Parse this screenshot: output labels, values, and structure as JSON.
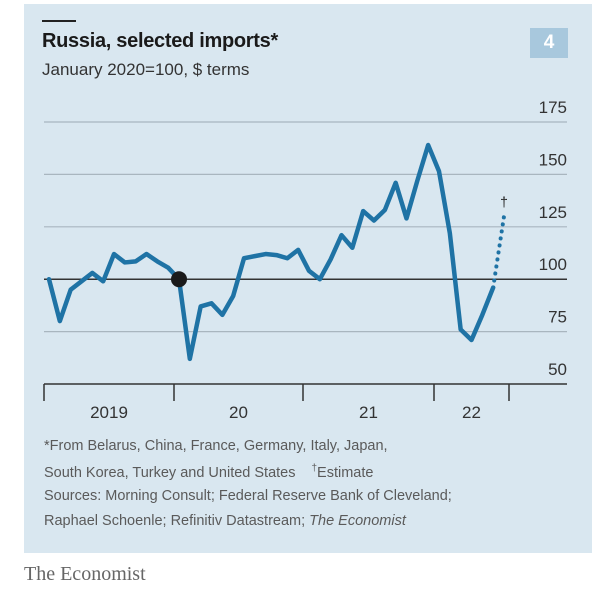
{
  "header": {
    "title": "Russia, selected imports*",
    "subtitle": "January 2020=100, $ terms",
    "badge": "4"
  },
  "footnotes": {
    "line1": "*From Belarus, China, France, Germany, Italy, Japan,",
    "line2": "South Korea, Turkey and United States",
    "dagger": "†",
    "estimate": "Estimate",
    "sources": "Sources: Morning Consult; Federal Reserve Bank of Cleveland;",
    "sources2": "Raphael Schoenle; Refinitiv Datastream; ",
    "sources2_italic": "The Economist"
  },
  "brand": "The Economist",
  "colors": {
    "line": "#1f73a5",
    "background": "#d9e7f0",
    "badge": "#a8c8dd",
    "marker": "#1a1a1a"
  },
  "chart_data": {
    "type": "line",
    "title": "Russia, selected imports*",
    "ylabel": "January 2020=100, $ terms",
    "ylim": [
      50,
      175
    ],
    "yticks": [
      50,
      75,
      100,
      125,
      150,
      175
    ],
    "xticks": [
      "2019",
      "20",
      "21",
      "22"
    ],
    "grid": true,
    "x": [
      "2019-01",
      "2019-02",
      "2019-03",
      "2019-04",
      "2019-05",
      "2019-06",
      "2019-07",
      "2019-08",
      "2019-09",
      "2019-10",
      "2019-11",
      "2019-12",
      "2020-01",
      "2020-02",
      "2020-03",
      "2020-04",
      "2020-05",
      "2020-06",
      "2020-07",
      "2020-08",
      "2020-09",
      "2020-10",
      "2020-11",
      "2020-12",
      "2021-01",
      "2021-02",
      "2021-03",
      "2021-04",
      "2021-05",
      "2021-06",
      "2021-07",
      "2021-08",
      "2021-09",
      "2021-10",
      "2021-11",
      "2021-12",
      "2022-01",
      "2022-02",
      "2022-03",
      "2022-04",
      "2022-05",
      "2022-06"
    ],
    "series": [
      {
        "name": "Selected imports",
        "values": [
          100,
          80,
          95,
          99,
          103,
          99,
          112,
          108,
          108.5,
          112,
          108.5,
          105.5,
          100,
          62,
          87,
          88.5,
          83,
          92,
          110,
          111,
          112,
          111.5,
          110,
          114,
          104,
          100,
          109.5,
          121,
          115,
          132.5,
          128,
          133,
          146,
          129,
          147,
          164,
          151.5,
          122,
          76,
          71,
          83,
          96
        ]
      }
    ],
    "estimate": {
      "name": "Estimate",
      "x": [
        "2022-06",
        "2022-07"
      ],
      "values": [
        96,
        130
      ],
      "style": "dotted",
      "label": "†"
    },
    "highlight": {
      "x": "2020-01",
      "value": 100
    }
  }
}
